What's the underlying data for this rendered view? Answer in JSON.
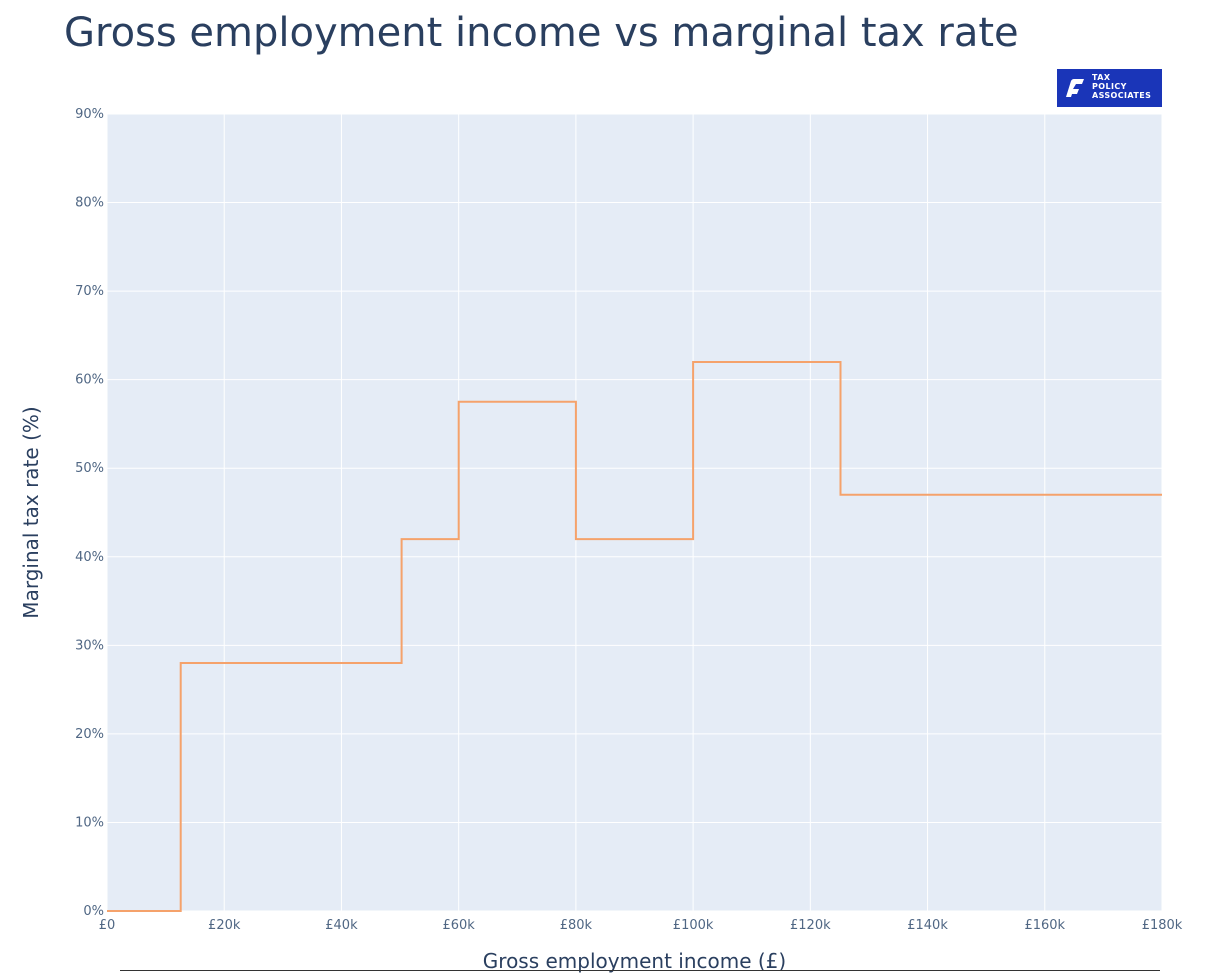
{
  "logo": {
    "lines": [
      "TAX",
      "POLICY",
      "ASSOCIATES"
    ],
    "background": "#1a35b8",
    "icon": "tax-policy-associates-logo-icon"
  },
  "chart_data": {
    "type": "line",
    "title": "Gross employment income vs marginal tax rate",
    "xlabel": "Gross employment income (£)",
    "ylabel": "Marginal tax rate (%)",
    "xlim": [
      0,
      180000
    ],
    "ylim": [
      0,
      90
    ],
    "x_ticks": [
      {
        "value": 0,
        "label": "£0"
      },
      {
        "value": 20000,
        "label": "£20k"
      },
      {
        "value": 40000,
        "label": "£40k"
      },
      {
        "value": 60000,
        "label": "£60k"
      },
      {
        "value": 80000,
        "label": "£80k"
      },
      {
        "value": 100000,
        "label": "£100k"
      },
      {
        "value": 120000,
        "label": "£120k"
      },
      {
        "value": 140000,
        "label": "£140k"
      },
      {
        "value": 160000,
        "label": "£160k"
      },
      {
        "value": 180000,
        "label": "£180k"
      }
    ],
    "y_ticks": [
      {
        "value": 0,
        "label": "0%"
      },
      {
        "value": 10,
        "label": "10%"
      },
      {
        "value": 20,
        "label": "20%"
      },
      {
        "value": 30,
        "label": "30%"
      },
      {
        "value": 40,
        "label": "40%"
      },
      {
        "value": 50,
        "label": "50%"
      },
      {
        "value": 60,
        "label": "60%"
      },
      {
        "value": 70,
        "label": "70%"
      },
      {
        "value": 80,
        "label": "80%"
      },
      {
        "value": 90,
        "label": "90%"
      }
    ],
    "grid": true,
    "series": [
      {
        "color": "#f5a26b",
        "points": [
          {
            "x": 0,
            "y": 0
          },
          {
            "x": 12570,
            "y": 0
          },
          {
            "x": 12570,
            "y": 28
          },
          {
            "x": 50270,
            "y": 28
          },
          {
            "x": 50270,
            "y": 42
          },
          {
            "x": 60000,
            "y": 42
          },
          {
            "x": 60000,
            "y": 57.5
          },
          {
            "x": 80000,
            "y": 57.5
          },
          {
            "x": 80000,
            "y": 42
          },
          {
            "x": 100000,
            "y": 42
          },
          {
            "x": 100000,
            "y": 62
          },
          {
            "x": 125140,
            "y": 62
          },
          {
            "x": 125140,
            "y": 47
          },
          {
            "x": 180000,
            "y": 47
          }
        ]
      }
    ]
  }
}
